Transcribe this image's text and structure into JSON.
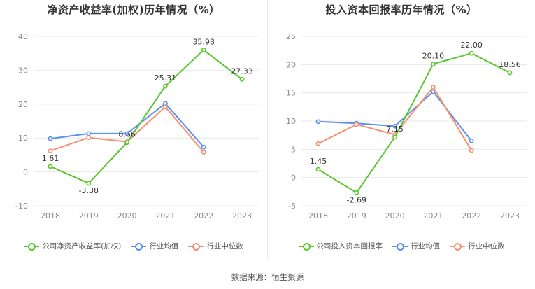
{
  "source_text": "数据来源：恒生聚源",
  "colors": {
    "company": "#5ac72e",
    "industry_avg": "#5b8ff0",
    "industry_median": "#f59070",
    "grid": "#e8e8e8",
    "axis_text": "#888888"
  },
  "chart_data": [
    {
      "type": "line",
      "title": "净资产收益率(加权)历年情况（%）",
      "categories": [
        "2018",
        "2019",
        "2020",
        "2021",
        "2022",
        "2023"
      ],
      "ylim": [
        -10,
        40
      ],
      "yticks": [
        -10,
        0,
        10,
        20,
        30,
        40
      ],
      "grid": true,
      "legend_position": "bottom",
      "series": [
        {
          "name": "公司净资产收益率(加权)",
          "color_key": "company",
          "values": [
            1.61,
            -3.38,
            8.66,
            25.31,
            35.98,
            27.33
          ],
          "labeled": true
        },
        {
          "name": "行业均值",
          "color_key": "industry_avg",
          "values": [
            9.8,
            11.3,
            11.3,
            20.2,
            7.3,
            null
          ],
          "labeled": false
        },
        {
          "name": "行业中位数",
          "color_key": "industry_median",
          "values": [
            6.2,
            10.1,
            8.9,
            19.2,
            5.8,
            null
          ],
          "labeled": false
        }
      ],
      "data_labels": [
        "1.61",
        "-3.38",
        "8.66",
        "25.31",
        "35.98",
        "27.33"
      ]
    },
    {
      "type": "line",
      "title": "投入资本回报率历年情况（%）",
      "categories": [
        "2018",
        "2019",
        "2020",
        "2021",
        "2022",
        "2023"
      ],
      "ylim": [
        -5,
        25
      ],
      "yticks": [
        -5,
        0,
        5,
        10,
        15,
        20,
        25
      ],
      "grid": true,
      "legend_position": "bottom",
      "series": [
        {
          "name": "公司投入资本回报率",
          "color_key": "company",
          "values": [
            1.45,
            -2.69,
            7.15,
            20.1,
            22.0,
            18.56
          ],
          "labeled": true
        },
        {
          "name": "行业均值",
          "color_key": "industry_avg",
          "values": [
            9.9,
            9.6,
            9.1,
            15.2,
            6.5,
            null
          ],
          "labeled": false
        },
        {
          "name": "行业中位数",
          "color_key": "industry_median",
          "values": [
            6.0,
            9.4,
            7.6,
            16.0,
            4.8,
            null
          ],
          "labeled": false
        }
      ],
      "data_labels": [
        "1.45",
        "-2.69",
        "7.15",
        "20.10",
        "22.00",
        "18.56"
      ]
    }
  ]
}
